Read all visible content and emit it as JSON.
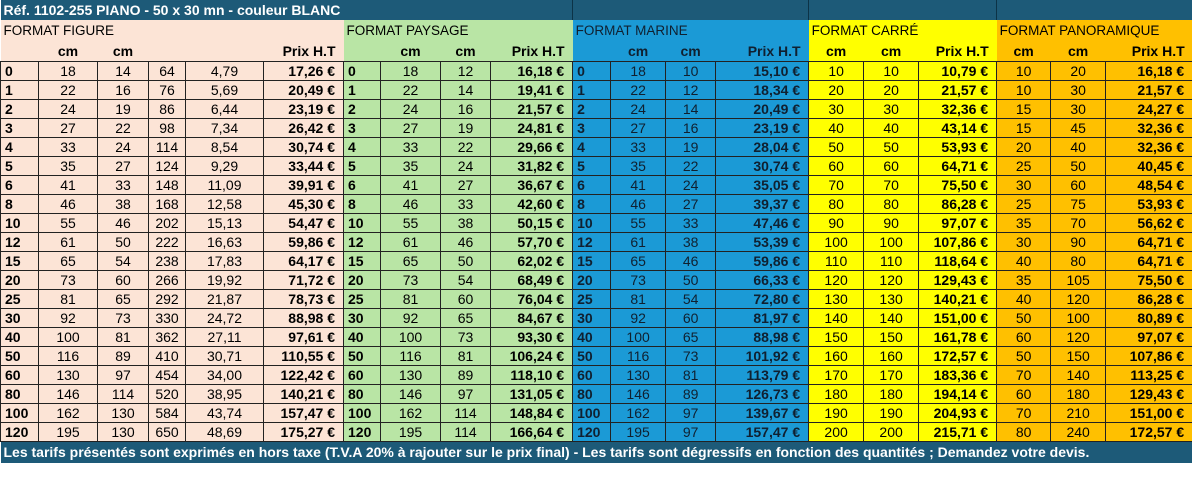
{
  "title": "Réf. 1102-255 PIANO - 50 x 30 mn - couleur BLANC",
  "footer": "Les tarifs présentés sont exprimés en hors taxe (T.V.A  20% à rajouter sur le prix final) - Les tarifs sont dégressifs en fonction des quantités ; Demandez votre devis.",
  "colors": {
    "header": "#1d5a78",
    "figure": "#fce4d6",
    "paysage": "#b9e5a5",
    "marine": "#1b9ad6",
    "carre": "#ffff00",
    "panoramique": "#ffc000"
  },
  "sections": {
    "figure": {
      "label": "FORMAT FIGURE",
      "headers": [
        "",
        "cm",
        "cm",
        "",
        "",
        "Prix H.T"
      ]
    },
    "paysage": {
      "label": "FORMAT PAYSAGE",
      "headers": [
        "",
        "cm",
        "cm",
        "Prix H.T"
      ]
    },
    "marine": {
      "label": "FORMAT MARINE",
      "headers": [
        "",
        "cm",
        "cm",
        "Prix H.T"
      ]
    },
    "carre": {
      "label": "FORMAT CARRÉ",
      "headers": [
        "cm",
        "cm",
        "Prix H.T"
      ]
    },
    "panoramique": {
      "label": "FORMAT PANORAMIQUE",
      "headers": [
        "cm",
        "cm",
        "Prix H.T"
      ]
    }
  },
  "rows": [
    {
      "figure": [
        "0",
        "18",
        "14",
        "64",
        "4,79",
        "17,26 €"
      ],
      "paysage": [
        "0",
        "18",
        "12",
        "16,18 €"
      ],
      "marine": [
        "0",
        "18",
        "10",
        "15,10 €"
      ],
      "carre": [
        "10",
        "10",
        "10,79 €"
      ],
      "panoramique": [
        "10",
        "20",
        "16,18 €"
      ]
    },
    {
      "figure": [
        "1",
        "22",
        "16",
        "76",
        "5,69",
        "20,49 €"
      ],
      "paysage": [
        "1",
        "22",
        "14",
        "19,41 €"
      ],
      "marine": [
        "1",
        "22",
        "12",
        "18,34 €"
      ],
      "carre": [
        "20",
        "20",
        "21,57 €"
      ],
      "panoramique": [
        "10",
        "30",
        "21,57 €"
      ]
    },
    {
      "figure": [
        "2",
        "24",
        "19",
        "86",
        "6,44",
        "23,19 €"
      ],
      "paysage": [
        "2",
        "24",
        "16",
        "21,57 €"
      ],
      "marine": [
        "2",
        "24",
        "14",
        "20,49 €"
      ],
      "carre": [
        "30",
        "30",
        "32,36 €"
      ],
      "panoramique": [
        "15",
        "30",
        "24,27 €"
      ]
    },
    {
      "figure": [
        "3",
        "27",
        "22",
        "98",
        "7,34",
        "26,42 €"
      ],
      "paysage": [
        "3",
        "27",
        "19",
        "24,81 €"
      ],
      "marine": [
        "3",
        "27",
        "16",
        "23,19 €"
      ],
      "carre": [
        "40",
        "40",
        "43,14 €"
      ],
      "panoramique": [
        "15",
        "45",
        "32,36 €"
      ]
    },
    {
      "figure": [
        "4",
        "33",
        "24",
        "114",
        "8,54",
        "30,74 €"
      ],
      "paysage": [
        "4",
        "33",
        "22",
        "29,66 €"
      ],
      "marine": [
        "4",
        "33",
        "19",
        "28,04 €"
      ],
      "carre": [
        "50",
        "50",
        "53,93 €"
      ],
      "panoramique": [
        "20",
        "40",
        "32,36 €"
      ]
    },
    {
      "figure": [
        "5",
        "35",
        "27",
        "124",
        "9,29",
        "33,44 €"
      ],
      "paysage": [
        "5",
        "35",
        "24",
        "31,82 €"
      ],
      "marine": [
        "5",
        "35",
        "22",
        "30,74 €"
      ],
      "carre": [
        "60",
        "60",
        "64,71 €"
      ],
      "panoramique": [
        "25",
        "50",
        "40,45 €"
      ]
    },
    {
      "figure": [
        "6",
        "41",
        "33",
        "148",
        "11,09",
        "39,91 €"
      ],
      "paysage": [
        "6",
        "41",
        "27",
        "36,67 €"
      ],
      "marine": [
        "6",
        "41",
        "24",
        "35,05 €"
      ],
      "carre": [
        "70",
        "70",
        "75,50 €"
      ],
      "panoramique": [
        "30",
        "60",
        "48,54 €"
      ]
    },
    {
      "figure": [
        "8",
        "46",
        "38",
        "168",
        "12,58",
        "45,30 €"
      ],
      "paysage": [
        "8",
        "46",
        "33",
        "42,60 €"
      ],
      "marine": [
        "8",
        "46",
        "27",
        "39,37 €"
      ],
      "carre": [
        "80",
        "80",
        "86,28 €"
      ],
      "panoramique": [
        "25",
        "75",
        "53,93 €"
      ]
    },
    {
      "figure": [
        "10",
        "55",
        "46",
        "202",
        "15,13",
        "54,47 €"
      ],
      "paysage": [
        "10",
        "55",
        "38",
        "50,15 €"
      ],
      "marine": [
        "10",
        "55",
        "33",
        "47,46 €"
      ],
      "carre": [
        "90",
        "90",
        "97,07 €"
      ],
      "panoramique": [
        "35",
        "70",
        "56,62 €"
      ]
    },
    {
      "figure": [
        "12",
        "61",
        "50",
        "222",
        "16,63",
        "59,86 €"
      ],
      "paysage": [
        "12",
        "61",
        "46",
        "57,70 €"
      ],
      "marine": [
        "12",
        "61",
        "38",
        "53,39 €"
      ],
      "carre": [
        "100",
        "100",
        "107,86 €"
      ],
      "panoramique": [
        "30",
        "90",
        "64,71 €"
      ]
    },
    {
      "figure": [
        "15",
        "65",
        "54",
        "238",
        "17,83",
        "64,17 €"
      ],
      "paysage": [
        "15",
        "65",
        "50",
        "62,02 €"
      ],
      "marine": [
        "15",
        "65",
        "46",
        "59,86 €"
      ],
      "carre": [
        "110",
        "110",
        "118,64 €"
      ],
      "panoramique": [
        "40",
        "80",
        "64,71 €"
      ]
    },
    {
      "figure": [
        "20",
        "73",
        "60",
        "266",
        "19,92",
        "71,72 €"
      ],
      "paysage": [
        "20",
        "73",
        "54",
        "68,49 €"
      ],
      "marine": [
        "20",
        "73",
        "50",
        "66,33 €"
      ],
      "carre": [
        "120",
        "120",
        "129,43 €"
      ],
      "panoramique": [
        "35",
        "105",
        "75,50 €"
      ]
    },
    {
      "figure": [
        "25",
        "81",
        "65",
        "292",
        "21,87",
        "78,73 €"
      ],
      "paysage": [
        "25",
        "81",
        "60",
        "76,04 €"
      ],
      "marine": [
        "25",
        "81",
        "54",
        "72,80 €"
      ],
      "carre": [
        "130",
        "130",
        "140,21 €"
      ],
      "panoramique": [
        "40",
        "120",
        "86,28 €"
      ]
    },
    {
      "figure": [
        "30",
        "92",
        "73",
        "330",
        "24,72",
        "88,98 €"
      ],
      "paysage": [
        "30",
        "92",
        "65",
        "84,67 €"
      ],
      "marine": [
        "30",
        "92",
        "60",
        "81,97 €"
      ],
      "carre": [
        "140",
        "140",
        "151,00 €"
      ],
      "panoramique": [
        "50",
        "100",
        "80,89 €"
      ]
    },
    {
      "figure": [
        "40",
        "100",
        "81",
        "362",
        "27,11",
        "97,61 €"
      ],
      "paysage": [
        "40",
        "100",
        "73",
        "93,30 €"
      ],
      "marine": [
        "40",
        "100",
        "65",
        "88,98 €"
      ],
      "carre": [
        "150",
        "150",
        "161,78 €"
      ],
      "panoramique": [
        "60",
        "120",
        "97,07 €"
      ]
    },
    {
      "figure": [
        "50",
        "116",
        "89",
        "410",
        "30,71",
        "110,55 €"
      ],
      "paysage": [
        "50",
        "116",
        "81",
        "106,24 €"
      ],
      "marine": [
        "50",
        "116",
        "73",
        "101,92 €"
      ],
      "carre": [
        "160",
        "160",
        "172,57 €"
      ],
      "panoramique": [
        "50",
        "150",
        "107,86 €"
      ]
    },
    {
      "figure": [
        "60",
        "130",
        "97",
        "454",
        "34,00",
        "122,42 €"
      ],
      "paysage": [
        "60",
        "130",
        "89",
        "118,10 €"
      ],
      "marine": [
        "60",
        "130",
        "81",
        "113,79 €"
      ],
      "carre": [
        "170",
        "170",
        "183,36 €"
      ],
      "panoramique": [
        "70",
        "140",
        "113,25 €"
      ]
    },
    {
      "figure": [
        "80",
        "146",
        "114",
        "520",
        "38,95",
        "140,21 €"
      ],
      "paysage": [
        "80",
        "146",
        "97",
        "131,05 €"
      ],
      "marine": [
        "80",
        "146",
        "89",
        "126,73 €"
      ],
      "carre": [
        "180",
        "180",
        "194,14 €"
      ],
      "panoramique": [
        "60",
        "180",
        "129,43 €"
      ]
    },
    {
      "figure": [
        "100",
        "162",
        "130",
        "584",
        "43,74",
        "157,47 €"
      ],
      "paysage": [
        "100",
        "162",
        "114",
        "148,84 €"
      ],
      "marine": [
        "100",
        "162",
        "97",
        "139,67 €"
      ],
      "carre": [
        "190",
        "190",
        "204,93 €"
      ],
      "panoramique": [
        "70",
        "210",
        "151,00 €"
      ]
    },
    {
      "figure": [
        "120",
        "195",
        "130",
        "650",
        "48,69",
        "175,27 €"
      ],
      "paysage": [
        "120",
        "195",
        "114",
        "166,64 €"
      ],
      "marine": [
        "120",
        "195",
        "97",
        "157,47 €"
      ],
      "carre": [
        "200",
        "200",
        "215,71 €"
      ],
      "panoramique": [
        "80",
        "240",
        "172,57 €"
      ]
    }
  ]
}
